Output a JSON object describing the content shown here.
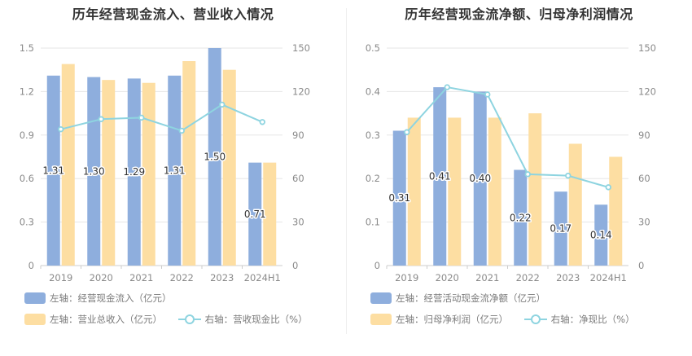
{
  "chart_data": [
    {
      "type": "bar",
      "title": "历年经营现金流入、营业收入情况",
      "categories": [
        "2019",
        "2020",
        "2021",
        "2022",
        "2023",
        "2024H1"
      ],
      "left_axis": {
        "ticks": [
          "0",
          "0.3",
          "0.6",
          "0.9",
          "1.2",
          "1.5"
        ],
        "ylim": [
          0,
          1.5
        ]
      },
      "right_axis": {
        "ticks": [
          "0",
          "30",
          "60",
          "90",
          "120",
          "150"
        ],
        "ylim": [
          0,
          150
        ]
      },
      "series": [
        {
          "name": "左轴：经营现金流入（亿元）",
          "kind": "bar",
          "axis": "left",
          "color": "#8eaedd",
          "values": [
            1.31,
            1.3,
            1.29,
            1.31,
            1.5,
            0.71
          ],
          "labels": [
            "1.31",
            "1.30",
            "1.29",
            "1.31",
            "1.50",
            "0.71"
          ]
        },
        {
          "name": "左轴：营业总收入（亿元）",
          "kind": "bar",
          "axis": "left",
          "color": "#fddea2",
          "values": [
            1.39,
            1.28,
            1.26,
            1.41,
            1.35,
            0.71
          ]
        },
        {
          "name": "右轴：营收现金比（%）",
          "kind": "line",
          "axis": "right",
          "color": "#8ed4e0",
          "values": [
            94,
            101,
            102,
            93,
            111,
            99
          ]
        }
      ],
      "grid": true,
      "legend_position": "bottom-left"
    },
    {
      "type": "bar",
      "title": "历年经营现金流净额、归母净利润情况",
      "categories": [
        "2019",
        "2020",
        "2021",
        "2022",
        "2023",
        "2024H1"
      ],
      "left_axis": {
        "ticks": [
          "0",
          "0.1",
          "0.2",
          "0.3",
          "0.4",
          "0.5"
        ],
        "ylim": [
          0,
          0.5
        ]
      },
      "right_axis": {
        "ticks": [
          "0",
          "30",
          "60",
          "90",
          "120",
          "150"
        ],
        "ylim": [
          0,
          150
        ]
      },
      "series": [
        {
          "name": "左轴：经营活动现金流净额（亿元）",
          "kind": "bar",
          "axis": "left",
          "color": "#8eaedd",
          "values": [
            0.31,
            0.41,
            0.4,
            0.22,
            0.17,
            0.14
          ],
          "labels": [
            "0.31",
            "0.41",
            "0.40",
            "0.22",
            "0.17",
            "0.14"
          ]
        },
        {
          "name": "左轴：归母净利润（亿元）",
          "kind": "bar",
          "axis": "left",
          "color": "#fddea2",
          "values": [
            0.34,
            0.34,
            0.34,
            0.35,
            0.28,
            0.25
          ]
        },
        {
          "name": "右轴：净现比（%）",
          "kind": "line",
          "axis": "right",
          "color": "#8ed4e0",
          "values": [
            92,
            123,
            118,
            63,
            62,
            54
          ]
        }
      ],
      "grid": true,
      "legend_position": "bottom-left"
    }
  ]
}
